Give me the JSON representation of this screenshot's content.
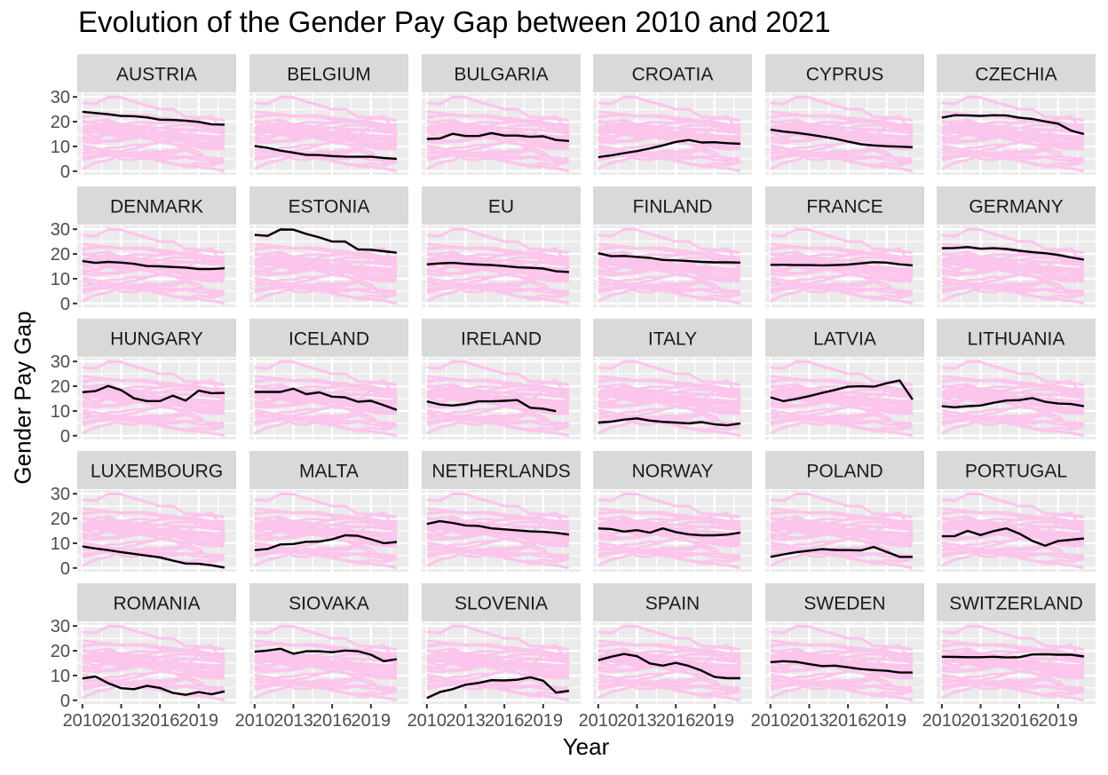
{
  "title": "Evolution of the Gender Pay Gap between 2010 and 2021",
  "colors": {
    "panel_bg": "#ebebeb",
    "strip_bg": "#d9d9d9",
    "grid_major": "#ffffff",
    "background_lines": "#fcc5ec",
    "highlight_line": "#000000",
    "tick_text": "#4d4d4d"
  },
  "chart_data": {
    "type": "line",
    "title": "Evolution of the Gender Pay Gap between 2010 and 2021",
    "xlabel": "Year",
    "ylabel": "Gender Pay Gap",
    "facet_by": "country",
    "layout": {
      "ncol": 6,
      "nrow": 5
    },
    "x": [
      2010,
      2011,
      2012,
      2013,
      2014,
      2015,
      2016,
      2017,
      2018,
      2019,
      2020,
      2021
    ],
    "x_ticks": [
      2010,
      2013,
      2016,
      2019
    ],
    "y_ticks": [
      0,
      10,
      20,
      30
    ],
    "xlim": [
      2009.6,
      2021.9
    ],
    "ylim": [
      -1.5,
      31.5
    ],
    "grid": true,
    "legend": "none",
    "highlight_style": "each panel shows its own country in black over all countries in pink",
    "series": [
      {
        "name": "AUSTRIA",
        "values": [
          24.0,
          23.5,
          23.0,
          22.3,
          22.2,
          21.7,
          20.8,
          20.7,
          20.4,
          19.9,
          18.9,
          18.8
        ]
      },
      {
        "name": "BELGIUM",
        "values": [
          10.2,
          9.4,
          8.3,
          7.5,
          6.6,
          6.5,
          6.1,
          5.9,
          5.8,
          5.8,
          5.3,
          5.0
        ]
      },
      {
        "name": "BULGARIA",
        "values": [
          13.0,
          13.2,
          15.1,
          14.2,
          14.2,
          15.4,
          14.4,
          14.4,
          13.9,
          14.1,
          12.6,
          12.2
        ]
      },
      {
        "name": "CROATIA",
        "values": [
          5.7,
          6.4,
          7.3,
          8.1,
          9.2,
          10.4,
          11.8,
          12.6,
          11.6,
          11.7,
          11.3,
          11.1
        ]
      },
      {
        "name": "CYPRUS",
        "values": [
          16.8,
          16.0,
          15.5,
          14.8,
          14.0,
          13.1,
          12.0,
          10.9,
          10.4,
          10.1,
          9.9,
          9.7
        ]
      },
      {
        "name": "CZECHIA",
        "values": [
          21.6,
          22.6,
          22.5,
          22.3,
          22.6,
          22.5,
          21.6,
          21.1,
          20.1,
          19.2,
          16.4,
          15.0
        ]
      },
      {
        "name": "DENMARK",
        "values": [
          17.1,
          16.4,
          16.8,
          16.5,
          16.0,
          15.1,
          15.0,
          14.7,
          14.5,
          13.9,
          13.9,
          14.2
        ]
      },
      {
        "name": "ESTONIA",
        "values": [
          27.7,
          27.3,
          29.9,
          29.8,
          28.1,
          26.7,
          25.0,
          25.0,
          21.8,
          21.7,
          21.1,
          20.5
        ]
      },
      {
        "name": "EU",
        "values": [
          15.8,
          16.2,
          16.4,
          16.0,
          15.7,
          15.5,
          15.1,
          14.6,
          14.4,
          14.1,
          13.0,
          12.7
        ]
      },
      {
        "name": "FINLAND",
        "values": [
          20.3,
          19.1,
          19.2,
          18.8,
          18.4,
          17.6,
          17.4,
          17.1,
          16.8,
          16.6,
          16.6,
          16.5
        ]
      },
      {
        "name": "FRANCE",
        "values": [
          15.6,
          15.6,
          15.5,
          15.5,
          15.4,
          15.5,
          15.7,
          16.2,
          16.7,
          16.5,
          15.8,
          15.4
        ]
      },
      {
        "name": "GERMANY",
        "values": [
          22.3,
          22.4,
          22.8,
          22.1,
          22.3,
          22.0,
          21.3,
          20.7,
          20.3,
          19.6,
          18.6,
          17.7
        ]
      },
      {
        "name": "HUNGARY",
        "values": [
          17.6,
          18.0,
          20.1,
          18.4,
          15.1,
          14.0,
          14.0,
          16.2,
          14.2,
          18.2,
          17.2,
          17.3
        ]
      },
      {
        "name": "ICELAND",
        "values": [
          17.7,
          17.7,
          17.7,
          19.0,
          16.8,
          17.5,
          15.8,
          15.5,
          13.7,
          14.1,
          12.3,
          10.4
        ]
      },
      {
        "name": "IRELAND",
        "values": [
          13.9,
          12.6,
          12.2,
          12.8,
          13.9,
          13.9,
          14.1,
          14.4,
          11.3,
          10.9,
          9.9,
          null
        ]
      },
      {
        "name": "ITALY",
        "values": [
          5.3,
          5.7,
          6.5,
          7.0,
          6.1,
          5.6,
          5.3,
          5.0,
          5.5,
          4.6,
          4.2,
          5.0
        ]
      },
      {
        "name": "LATVIA",
        "values": [
          15.5,
          14.0,
          14.9,
          16.0,
          17.3,
          18.5,
          19.8,
          20.0,
          19.8,
          21.2,
          22.3,
          14.6
        ]
      },
      {
        "name": "LITHUANIA",
        "values": [
          11.9,
          11.5,
          11.9,
          12.2,
          13.3,
          14.2,
          14.4,
          15.2,
          13.7,
          13.0,
          12.8,
          11.9
        ]
      },
      {
        "name": "LUXEMBOURG",
        "values": [
          8.7,
          7.9,
          7.2,
          6.4,
          5.7,
          5.0,
          4.3,
          3.0,
          1.8,
          1.7,
          1.1,
          0.2
        ]
      },
      {
        "name": "MALTA",
        "values": [
          7.2,
          7.7,
          9.5,
          9.7,
          10.6,
          10.7,
          11.6,
          13.2,
          13.0,
          11.6,
          10.0,
          10.5
        ]
      },
      {
        "name": "NETHERLANDS",
        "values": [
          17.8,
          18.9,
          18.2,
          17.2,
          17.0,
          16.0,
          15.6,
          15.2,
          14.8,
          14.6,
          14.2,
          13.5
        ]
      },
      {
        "name": "NORWAY",
        "values": [
          16.0,
          15.7,
          14.7,
          15.3,
          14.3,
          16.0,
          14.5,
          13.6,
          13.2,
          13.2,
          13.5,
          14.3
        ]
      },
      {
        "name": "POLAND",
        "values": [
          4.5,
          5.5,
          6.4,
          7.0,
          7.6,
          7.3,
          7.2,
          7.1,
          8.5,
          6.5,
          4.5,
          4.5
        ]
      },
      {
        "name": "PORTUGAL",
        "values": [
          12.8,
          12.9,
          15.0,
          13.3,
          14.9,
          16.0,
          13.9,
          11.0,
          9.0,
          10.9,
          11.4,
          11.9
        ]
      },
      {
        "name": "ROMANIA",
        "values": [
          8.8,
          9.6,
          6.9,
          4.9,
          4.5,
          5.8,
          5.0,
          3.0,
          2.2,
          3.3,
          2.4,
          3.6
        ]
      },
      {
        "name": "SIOVAKA",
        "values": [
          19.6,
          20.1,
          20.8,
          18.8,
          19.8,
          19.8,
          19.4,
          20.1,
          19.8,
          18.4,
          15.8,
          16.6
        ]
      },
      {
        "name": "SLOVENIA",
        "values": [
          0.9,
          3.3,
          4.5,
          6.3,
          7.0,
          8.1,
          8.0,
          8.3,
          9.3,
          7.9,
          3.1,
          3.8
        ]
      },
      {
        "name": "SPAIN",
        "values": [
          16.2,
          17.6,
          18.7,
          17.8,
          14.9,
          14.0,
          15.1,
          13.9,
          12.0,
          9.4,
          8.9,
          8.9
        ]
      },
      {
        "name": "SWEDEN",
        "values": [
          15.4,
          15.8,
          15.5,
          14.6,
          13.8,
          14.0,
          13.3,
          12.6,
          12.2,
          11.9,
          11.2,
          11.2
        ]
      },
      {
        "name": "SWITZERLAND",
        "values": [
          17.6,
          17.5,
          17.4,
          17.4,
          17.6,
          17.3,
          17.4,
          18.5,
          18.6,
          18.4,
          18.4,
          17.7
        ]
      }
    ],
    "background_extra_series": [
      {
        "name": "bg-top",
        "values": [
          27.6,
          27.0,
          30.0,
          29.8,
          28.0,
          26.5,
          25.0,
          25.0,
          22.0,
          21.8,
          21.5,
          20.6
        ]
      },
      {
        "name": "bg-low",
        "values": [
          1.0,
          3.5,
          4.5,
          6.3,
          7.0,
          5.5,
          4.0,
          3.0,
          2.5,
          2.0,
          1.0,
          0.0
        ]
      }
    ]
  }
}
